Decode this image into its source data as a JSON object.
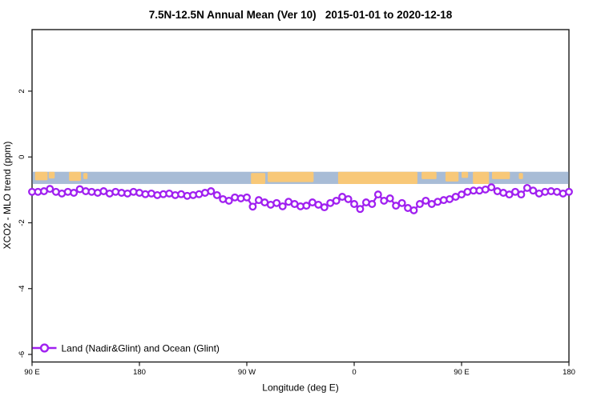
{
  "page": {
    "background": "#FFFFFF"
  },
  "chart_data": {
    "type": "line",
    "title": "7.5N-12.5N Annual Mean (Ver 10)   2015-01-01 to 2020-12-18",
    "xlabel": "Longitude (deg E)",
    "ylabel": "XCO2 - MLO trend (ppm)",
    "xlim": [
      90,
      540
    ],
    "ylim": [
      -6.23,
      3.87
    ],
    "grid": "off",
    "legend_position": "bottom-left",
    "x_ticks": {
      "values": [
        90,
        180,
        270,
        360,
        450,
        540
      ],
      "labels": [
        "90 E",
        "180",
        "90 W",
        "0",
        "90 E",
        "180"
      ]
    },
    "y_ticks": {
      "values": [
        2,
        0,
        -2,
        -4,
        -6
      ],
      "labels": [
        "2",
        "0",
        "-2",
        "-4",
        "-6"
      ]
    },
    "series": [
      {
        "name": "Land (Nadir&Glint) and Ocean (Glint)",
        "color": "#A020F0",
        "marker": "open-circle",
        "x": [
          90,
          95,
          100,
          105,
          110,
          115,
          120,
          125,
          130,
          135,
          140,
          145,
          150,
          155,
          160,
          165,
          170,
          175,
          180,
          185,
          190,
          195,
          200,
          205,
          210,
          215,
          220,
          225,
          230,
          235,
          240,
          245,
          250,
          255,
          260,
          265,
          270,
          275,
          280,
          285,
          290,
          295,
          300,
          305,
          310,
          315,
          320,
          325,
          330,
          335,
          340,
          345,
          350,
          355,
          360,
          365,
          370,
          375,
          380,
          385,
          390,
          395,
          400,
          405,
          410,
          415,
          420,
          425,
          430,
          435,
          440,
          445,
          450,
          455,
          460,
          465,
          470,
          475,
          480,
          485,
          490,
          495,
          500,
          505,
          510,
          515,
          520,
          525,
          530,
          535,
          540
        ],
        "y": [
          -1.06,
          -1.06,
          -1.04,
          -0.97,
          -1.06,
          -1.11,
          -1.06,
          -1.09,
          -0.98,
          -1.04,
          -1.06,
          -1.09,
          -1.04,
          -1.11,
          -1.06,
          -1.09,
          -1.11,
          -1.06,
          -1.09,
          -1.13,
          -1.11,
          -1.16,
          -1.13,
          -1.11,
          -1.16,
          -1.13,
          -1.18,
          -1.16,
          -1.13,
          -1.09,
          -1.04,
          -1.16,
          -1.28,
          -1.33,
          -1.23,
          -1.26,
          -1.23,
          -1.51,
          -1.31,
          -1.38,
          -1.45,
          -1.4,
          -1.5,
          -1.36,
          -1.43,
          -1.5,
          -1.48,
          -1.38,
          -1.45,
          -1.53,
          -1.4,
          -1.33,
          -1.21,
          -1.28,
          -1.43,
          -1.58,
          -1.38,
          -1.43,
          -1.14,
          -1.33,
          -1.26,
          -1.48,
          -1.4,
          -1.55,
          -1.62,
          -1.43,
          -1.33,
          -1.43,
          -1.36,
          -1.31,
          -1.28,
          -1.21,
          -1.14,
          -1.06,
          -1.02,
          -1.02,
          -0.99,
          -0.92,
          -1.04,
          -1.09,
          -1.14,
          -1.06,
          -1.14,
          -0.94,
          -1.02,
          -1.11,
          -1.06,
          -1.04,
          -1.06,
          -1.11,
          -1.06
        ]
      }
    ],
    "map_strip": {
      "description": "land-ocean world strip at 7.5N-12.5N",
      "ocean_color": "#A8BCD6",
      "land_color": "#F8C878",
      "y_top_value": -0.45,
      "y_bottom_value": -0.82,
      "land_segments_deg_e": [
        [
          92.5,
          103,
          0.0,
          0.7
        ],
        [
          104,
          109,
          0.0,
          0.55
        ],
        [
          121,
          131,
          0.0,
          0.75
        ],
        [
          133,
          136.5,
          0.1,
          0.6
        ],
        [
          273.5,
          285.5,
          0.1,
          1.0
        ],
        [
          287.5,
          326,
          0.0,
          0.85
        ],
        [
          346.5,
          413,
          0.0,
          1.0
        ],
        [
          416.5,
          429,
          0.0,
          0.6
        ],
        [
          436.5,
          447.5,
          0.0,
          0.8
        ],
        [
          450,
          455.5,
          0.0,
          0.5
        ],
        [
          459.5,
          473,
          0.0,
          1.0
        ],
        [
          475.5,
          490.5,
          0.0,
          0.6
        ],
        [
          498,
          501.5,
          0.1,
          0.6
        ]
      ]
    }
  },
  "legend": {
    "entries": [
      {
        "label": "Land (Nadir&Glint) and Ocean (Glint)",
        "color": "#A020F0",
        "marker": "open-circle"
      }
    ]
  }
}
